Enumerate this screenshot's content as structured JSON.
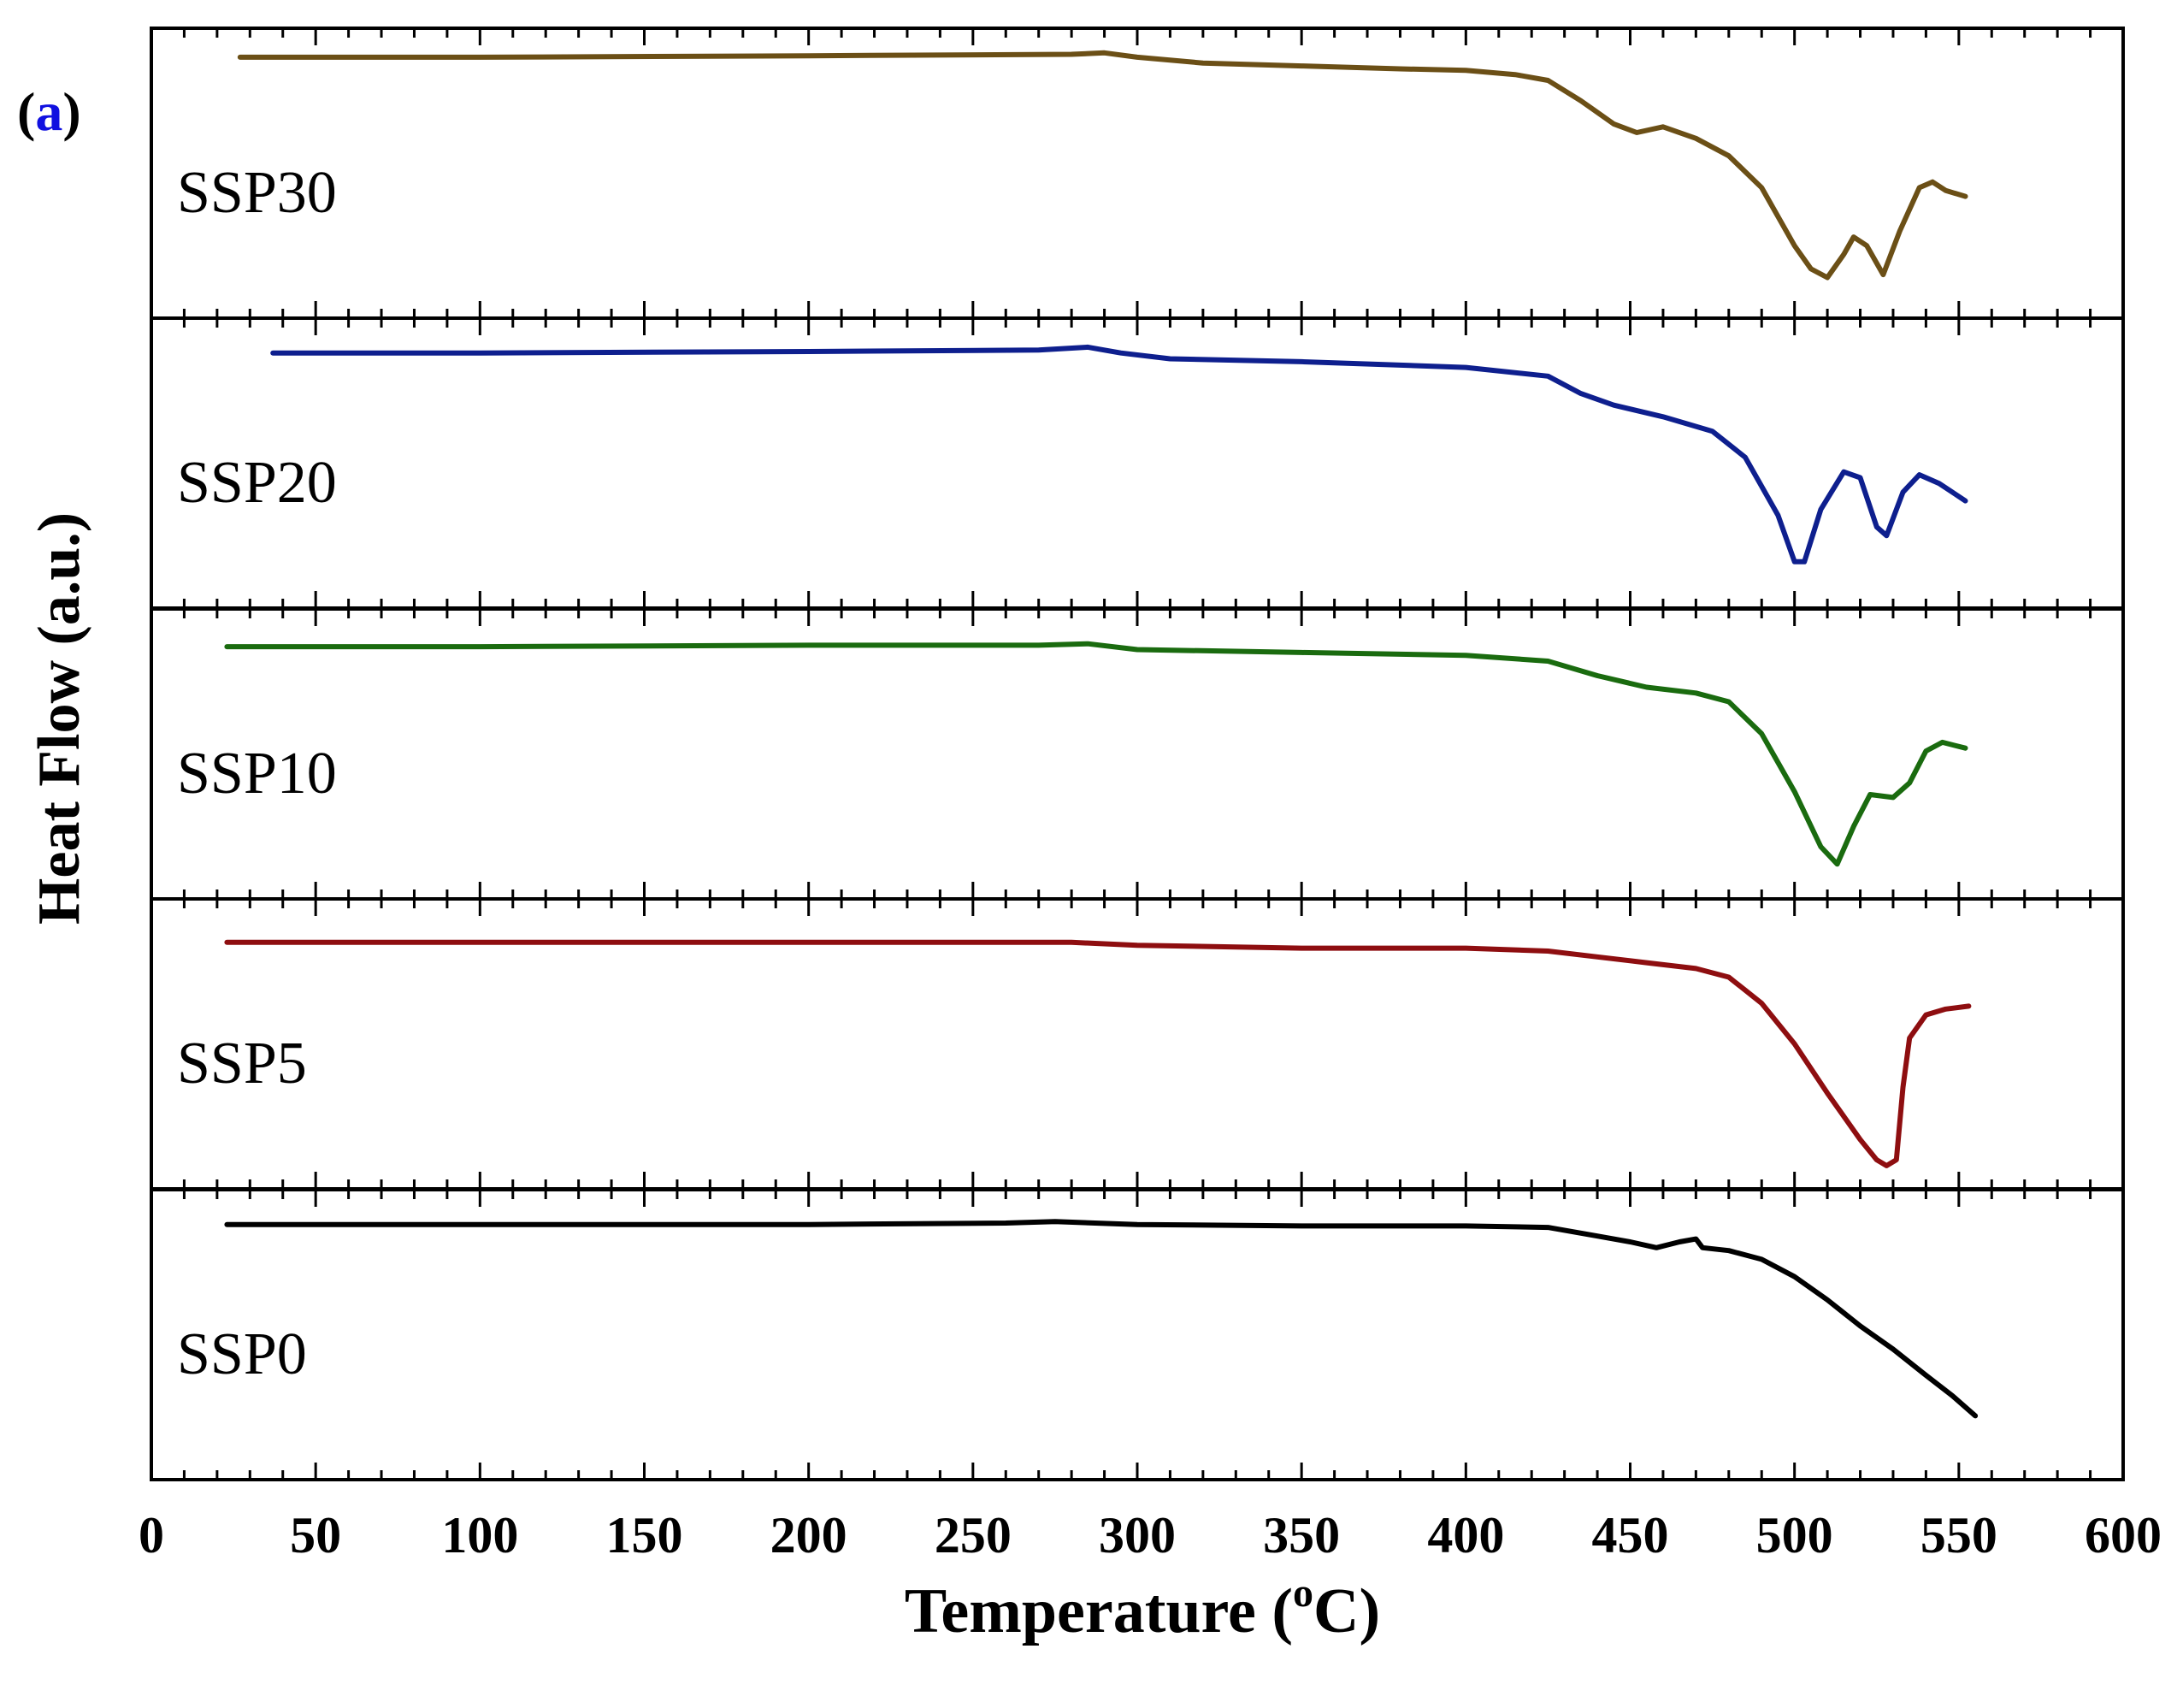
{
  "panel_label": {
    "open": "(",
    "letter": "a",
    "close": ")"
  },
  "colors": {
    "frame": "#000000",
    "panel_letter": "#1010e0",
    "SSP30": "#6b4f16",
    "SSP20": "#0e1f8e",
    "SSP10": "#1a6b0f",
    "SSP5": "#8e0e10",
    "SSP0": "#000000"
  },
  "chart_data": {
    "type": "line",
    "title": "",
    "xlabel": "Temperature (°C)",
    "xlabel_parts": {
      "main": "Temperature (",
      "sup": "o",
      "unit": "C)"
    },
    "ylabel": "Heat Flow (a.u.)",
    "xlim": [
      0,
      600
    ],
    "xticks": [
      0,
      50,
      100,
      150,
      200,
      250,
      300,
      350,
      400,
      450,
      500,
      550,
      600
    ],
    "xtick_labels": [
      "0",
      "50",
      "100",
      "150",
      "200",
      "250",
      "300",
      "350",
      "400",
      "450",
      "500",
      "550",
      "600"
    ],
    "minor_tick_step": 10,
    "ylim": [
      0,
      1
    ],
    "yaxis_note": "stacked panels, arbitrary units (no y tick labels)",
    "series": [
      {
        "name": "SSP30",
        "points": [
          [
            27,
            0.9
          ],
          [
            100,
            0.9
          ],
          [
            200,
            0.905
          ],
          [
            280,
            0.91
          ],
          [
            290,
            0.915
          ],
          [
            300,
            0.9
          ],
          [
            320,
            0.88
          ],
          [
            350,
            0.87
          ],
          [
            380,
            0.86
          ],
          [
            400,
            0.855
          ],
          [
            415,
            0.84
          ],
          [
            425,
            0.82
          ],
          [
            435,
            0.75
          ],
          [
            445,
            0.67
          ],
          [
            452,
            0.64
          ],
          [
            460,
            0.66
          ],
          [
            470,
            0.62
          ],
          [
            480,
            0.56
          ],
          [
            490,
            0.45
          ],
          [
            500,
            0.25
          ],
          [
            505,
            0.17
          ],
          [
            510,
            0.14
          ],
          [
            515,
            0.22
          ],
          [
            518,
            0.28
          ],
          [
            522,
            0.25
          ],
          [
            527,
            0.15
          ],
          [
            532,
            0.3
          ],
          [
            538,
            0.45
          ],
          [
            542,
            0.47
          ],
          [
            546,
            0.44
          ],
          [
            552,
            0.42
          ]
        ]
      },
      {
        "name": "SSP20",
        "points": [
          [
            37,
            0.88
          ],
          [
            100,
            0.88
          ],
          [
            200,
            0.885
          ],
          [
            270,
            0.89
          ],
          [
            285,
            0.9
          ],
          [
            295,
            0.88
          ],
          [
            310,
            0.86
          ],
          [
            350,
            0.85
          ],
          [
            400,
            0.83
          ],
          [
            425,
            0.8
          ],
          [
            435,
            0.74
          ],
          [
            445,
            0.7
          ],
          [
            460,
            0.66
          ],
          [
            475,
            0.61
          ],
          [
            485,
            0.52
          ],
          [
            495,
            0.32
          ],
          [
            500,
            0.16
          ],
          [
            503,
            0.16
          ],
          [
            508,
            0.34
          ],
          [
            515,
            0.47
          ],
          [
            520,
            0.45
          ],
          [
            525,
            0.28
          ],
          [
            528,
            0.25
          ],
          [
            533,
            0.4
          ],
          [
            538,
            0.46
          ],
          [
            544,
            0.43
          ],
          [
            552,
            0.37
          ]
        ]
      },
      {
        "name": "SSP10",
        "points": [
          [
            23,
            0.87
          ],
          [
            100,
            0.87
          ],
          [
            200,
            0.875
          ],
          [
            270,
            0.875
          ],
          [
            285,
            0.88
          ],
          [
            300,
            0.86
          ],
          [
            350,
            0.85
          ],
          [
            400,
            0.84
          ],
          [
            425,
            0.82
          ],
          [
            440,
            0.77
          ],
          [
            455,
            0.73
          ],
          [
            470,
            0.71
          ],
          [
            480,
            0.68
          ],
          [
            490,
            0.57
          ],
          [
            500,
            0.37
          ],
          [
            508,
            0.18
          ],
          [
            513,
            0.12
          ],
          [
            518,
            0.25
          ],
          [
            523,
            0.36
          ],
          [
            530,
            0.35
          ],
          [
            535,
            0.4
          ],
          [
            540,
            0.51
          ],
          [
            545,
            0.54
          ],
          [
            552,
            0.52
          ]
        ]
      },
      {
        "name": "SSP5",
        "points": [
          [
            23,
            0.85
          ],
          [
            100,
            0.85
          ],
          [
            200,
            0.85
          ],
          [
            280,
            0.85
          ],
          [
            300,
            0.84
          ],
          [
            350,
            0.83
          ],
          [
            400,
            0.83
          ],
          [
            425,
            0.82
          ],
          [
            440,
            0.8
          ],
          [
            455,
            0.78
          ],
          [
            470,
            0.76
          ],
          [
            480,
            0.73
          ],
          [
            490,
            0.64
          ],
          [
            500,
            0.5
          ],
          [
            510,
            0.33
          ],
          [
            520,
            0.17
          ],
          [
            525,
            0.1
          ],
          [
            528,
            0.08
          ],
          [
            531,
            0.1
          ],
          [
            533,
            0.35
          ],
          [
            535,
            0.52
          ],
          [
            540,
            0.6
          ],
          [
            546,
            0.62
          ],
          [
            553,
            0.63
          ]
        ]
      },
      {
        "name": "SSP0",
        "points": [
          [
            23,
            0.88
          ],
          [
            100,
            0.88
          ],
          [
            200,
            0.88
          ],
          [
            260,
            0.885
          ],
          [
            275,
            0.89
          ],
          [
            300,
            0.88
          ],
          [
            350,
            0.875
          ],
          [
            400,
            0.875
          ],
          [
            425,
            0.87
          ],
          [
            440,
            0.84
          ],
          [
            450,
            0.82
          ],
          [
            458,
            0.8
          ],
          [
            465,
            0.82
          ],
          [
            470,
            0.83
          ],
          [
            472,
            0.8
          ],
          [
            480,
            0.79
          ],
          [
            490,
            0.76
          ],
          [
            500,
            0.7
          ],
          [
            510,
            0.62
          ],
          [
            520,
            0.53
          ],
          [
            530,
            0.45
          ],
          [
            540,
            0.36
          ],
          [
            548,
            0.29
          ],
          [
            555,
            0.22
          ]
        ]
      }
    ]
  }
}
